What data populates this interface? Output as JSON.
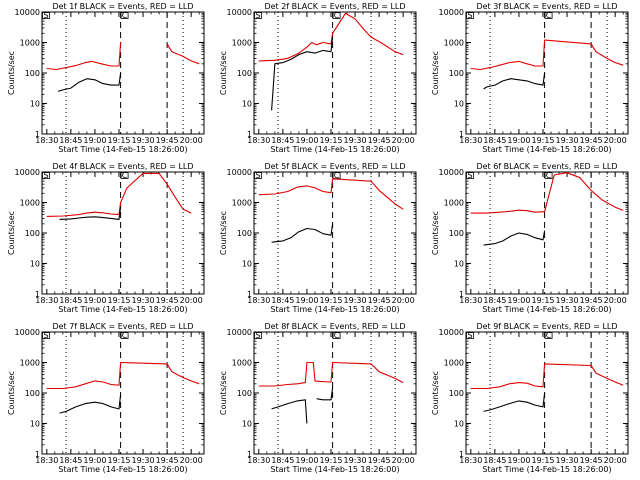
{
  "figure": {
    "colors": {
      "events": "#000000",
      "lld": "#e00000",
      "axes": "#000000",
      "background": "#ffffff"
    }
  },
  "chart_data": [
    {
      "type": "line",
      "title": "Det 1f BLACK = Events, RED = LLD",
      "xlabel": "Start Time (14-Feb-15 18:26:00)",
      "ylabel": "Counts/sec",
      "y_scale": "log",
      "ylim": [
        1,
        10000
      ],
      "x_tick_labels": [
        "18:30",
        "18:45",
        "19:00",
        "19:15",
        "19:30",
        "19:45",
        "20:00"
      ],
      "y_tick_labels": [
        "1",
        "10",
        "100",
        "1000",
        "10000"
      ],
      "grid": false,
      "dotted_lines": [
        "18:42",
        "19:55"
      ],
      "dashed_lines": [
        "19:16",
        "19:45"
      ],
      "flags": [
        "S",
        "C"
      ],
      "series": [
        {
          "name": "LLD",
          "color": "#e00000",
          "x": [
            "18:30",
            "18:36",
            "18:42",
            "18:48",
            "18:54",
            "18:58",
            "19:04",
            "19:10",
            "19:15",
            "19:16",
            "19:18",
            "19:30",
            "19:45",
            "19:48",
            "19:55",
            "20:00",
            "20:05"
          ],
          "y": [
            140,
            130,
            150,
            175,
            220,
            240,
            200,
            170,
            170,
            1000,
            null,
            null,
            900,
            500,
            350,
            250,
            200
          ]
        },
        {
          "name": "Events",
          "color": "#000000",
          "x": [
            "18:37",
            "18:40",
            "18:45",
            "18:50",
            "18:55",
            "19:00",
            "19:05",
            "19:10",
            "19:15",
            "19:16"
          ],
          "y": [
            25,
            28,
            32,
            50,
            65,
            60,
            45,
            40,
            40,
            100
          ]
        }
      ]
    },
    {
      "type": "line",
      "title": "Det 2f BLACK = Events, RED = LLD",
      "xlabel": "Start Time (14-Feb-15 18:26:00)",
      "ylabel": "Counts/sec",
      "y_scale": "log",
      "ylim": [
        1,
        10000
      ],
      "x_tick_labels": [
        "18:30",
        "18:45",
        "19:00",
        "19:15",
        "19:30",
        "19:45",
        "20:00"
      ],
      "y_tick_labels": [
        "1",
        "10",
        "100",
        "1000",
        "10000"
      ],
      "grid": false,
      "dotted_lines": [
        "18:42",
        "19:40",
        "19:55"
      ],
      "dashed_lines": [
        "19:16"
      ],
      "flags": [
        "S",
        "C"
      ],
      "series": [
        {
          "name": "LLD",
          "color": "#e00000",
          "x": [
            "18:30",
            "18:40",
            "18:48",
            "18:55",
            "19:00",
            "19:03",
            "19:06",
            "19:10",
            "19:15",
            "19:16",
            "19:24",
            "19:30",
            "19:36",
            "19:40",
            "19:46",
            "19:55",
            "20:00"
          ],
          "y": [
            250,
            260,
            300,
            450,
            700,
            1000,
            850,
            1000,
            900,
            2000,
            9000,
            6000,
            2500,
            1500,
            1000,
            500,
            400
          ]
        },
        {
          "name": "Events",
          "color": "#000000",
          "x": [
            "18:38",
            "18:40",
            "18:45",
            "18:50",
            "18:55",
            "19:00",
            "19:05",
            "19:10",
            "19:15",
            "19:16"
          ],
          "y": [
            6,
            200,
            220,
            280,
            400,
            500,
            450,
            550,
            500,
            1500
          ]
        }
      ]
    },
    {
      "type": "line",
      "title": "Det 3f BLACK = Events, RED = LLD",
      "xlabel": "Start Time (14-Feb-15 18:26:00)",
      "ylabel": "Counts/sec",
      "y_scale": "log",
      "ylim": [
        1,
        10000
      ],
      "x_tick_labels": [
        "18:30",
        "18:45",
        "19:00",
        "19:15",
        "19:30",
        "19:45",
        "20:00"
      ],
      "y_tick_labels": [
        "1",
        "10",
        "100",
        "1000",
        "10000"
      ],
      "grid": false,
      "dotted_lines": [
        "18:42",
        "19:55"
      ],
      "dashed_lines": [
        "19:16",
        "19:45"
      ],
      "flags": [
        "S",
        "C"
      ],
      "series": [
        {
          "name": "LLD",
          "color": "#e00000",
          "x": [
            "18:30",
            "18:36",
            "18:42",
            "18:48",
            "18:54",
            "19:00",
            "19:05",
            "19:10",
            "19:15",
            "19:16",
            "19:45",
            "19:48",
            "19:55",
            "20:00",
            "20:05"
          ],
          "y": [
            140,
            130,
            150,
            180,
            220,
            240,
            200,
            170,
            170,
            1200,
            900,
            500,
            300,
            220,
            180
          ]
        },
        {
          "name": "Events",
          "color": "#000000",
          "x": [
            "18:38",
            "18:40",
            "18:45",
            "18:50",
            "18:55",
            "19:00",
            "19:05",
            "19:10",
            "19:15",
            "19:16"
          ],
          "y": [
            30,
            35,
            40,
            55,
            65,
            60,
            55,
            45,
            40,
            100
          ]
        }
      ]
    },
    {
      "type": "line",
      "title": "Det 4f BLACK = Events, RED = LLD",
      "xlabel": "Start Time (14-Feb-15 18:26:00)",
      "ylabel": "Counts/sec",
      "y_scale": "log",
      "ylim": [
        1,
        10000
      ],
      "x_tick_labels": [
        "18:30",
        "18:45",
        "19:00",
        "19:15",
        "19:30",
        "19:45",
        "20:00"
      ],
      "y_tick_labels": [
        "1",
        "10",
        "100",
        "1000",
        "10000"
      ],
      "grid": false,
      "dotted_lines": [
        "18:42",
        "19:55"
      ],
      "dashed_lines": [
        "19:16",
        "19:45"
      ],
      "flags": [
        "S",
        "C"
      ],
      "series": [
        {
          "name": "LLD",
          "color": "#e00000",
          "x": [
            "18:30",
            "18:40",
            "18:50",
            "18:55",
            "19:00",
            "19:05",
            "19:10",
            "19:15",
            "19:16",
            "19:20",
            "19:30",
            "19:40",
            "19:45",
            "19:50",
            "19:55",
            "20:00"
          ],
          "y": [
            350,
            360,
            400,
            450,
            480,
            460,
            420,
            400,
            1000,
            3000,
            9000,
            9000,
            4000,
            1500,
            600,
            450
          ]
        },
        {
          "name": "Events",
          "color": "#000000",
          "x": [
            "18:38",
            "18:45",
            "18:50",
            "18:55",
            "19:00",
            "19:05",
            "19:10",
            "19:15",
            "19:16"
          ],
          "y": [
            280,
            290,
            310,
            330,
            340,
            320,
            300,
            280,
            700
          ]
        }
      ]
    },
    {
      "type": "line",
      "title": "Det 5f BLACK = Events, RED = LLD",
      "xlabel": "Start Time (14-Feb-15 18:26:00)",
      "ylabel": "Counts/sec",
      "y_scale": "log",
      "ylim": [
        1,
        10000
      ],
      "x_tick_labels": [
        "18:30",
        "18:45",
        "19:00",
        "19:15",
        "19:30",
        "19:45",
        "20:00"
      ],
      "y_tick_labels": [
        "1",
        "10",
        "100",
        "1000",
        "10000"
      ],
      "grid": false,
      "dotted_lines": [
        "18:42",
        "19:40",
        "19:55"
      ],
      "dashed_lines": [
        "19:16"
      ],
      "flags": [
        "S",
        "C"
      ],
      "series": [
        {
          "name": "LLD",
          "color": "#e00000",
          "x": [
            "18:30",
            "18:40",
            "18:48",
            "18:54",
            "19:00",
            "19:05",
            "19:10",
            "19:15",
            "19:16",
            "19:40",
            "19:45",
            "19:55",
            "20:00"
          ],
          "y": [
            1800,
            1900,
            2300,
            3200,
            3500,
            3000,
            2300,
            2100,
            6000,
            5000,
            2500,
            900,
            600
          ]
        },
        {
          "name": "Events",
          "color": "#000000",
          "x": [
            "18:38",
            "18:45",
            "18:50",
            "18:55",
            "19:00",
            "19:05",
            "19:10",
            "19:15",
            "19:16"
          ],
          "y": [
            50,
            55,
            70,
            110,
            140,
            130,
            95,
            85,
            200
          ]
        }
      ]
    },
    {
      "type": "line",
      "title": "Det 6f BLACK = Events, RED = LLD",
      "xlabel": "Start Time (14-Feb-15 18:26:00)",
      "ylabel": "Counts/sec",
      "y_scale": "log",
      "ylim": [
        1,
        10000
      ],
      "x_tick_labels": [
        "18:30",
        "18:45",
        "19:00",
        "19:15",
        "19:30",
        "19:45",
        "20:00"
      ],
      "y_tick_labels": [
        "1",
        "10",
        "100",
        "1000",
        "10000"
      ],
      "grid": false,
      "dotted_lines": [
        "18:42",
        "19:55"
      ],
      "dashed_lines": [
        "19:16",
        "19:45"
      ],
      "flags": [
        "S",
        "C"
      ],
      "series": [
        {
          "name": "LLD",
          "color": "#e00000",
          "x": [
            "18:30",
            "18:40",
            "18:48",
            "18:55",
            "19:00",
            "19:05",
            "19:10",
            "19:16",
            "19:22",
            "19:30",
            "19:38",
            "19:45",
            "19:52",
            "20:00",
            "20:05"
          ],
          "y": [
            450,
            450,
            480,
            520,
            560,
            540,
            480,
            500,
            8000,
            9500,
            6500,
            2500,
            1200,
            700,
            550
          ]
        },
        {
          "name": "Events",
          "color": "#000000",
          "x": [
            "18:38",
            "18:45",
            "18:50",
            "18:55",
            "19:00",
            "19:05",
            "19:10",
            "19:15",
            "19:16"
          ],
          "y": [
            40,
            45,
            55,
            80,
            100,
            90,
            70,
            60,
            120
          ]
        }
      ]
    },
    {
      "type": "line",
      "title": "Det 7f BLACK = Events, RED = LLD",
      "xlabel": "Start Time (14-Feb-15 18:26:00)",
      "ylabel": "Counts/sec",
      "y_scale": "log",
      "ylim": [
        1,
        10000
      ],
      "x_tick_labels": [
        "18:30",
        "18:45",
        "19:00",
        "19:15",
        "19:30",
        "19:45",
        "20:00"
      ],
      "y_tick_labels": [
        "1",
        "10",
        "100",
        "1000",
        "10000"
      ],
      "grid": false,
      "dotted_lines": [
        "18:42",
        "19:55"
      ],
      "dashed_lines": [
        "19:16",
        "19:45"
      ],
      "flags": [
        "S",
        "C"
      ],
      "series": [
        {
          "name": "LLD",
          "color": "#e00000",
          "x": [
            "18:30",
            "18:40",
            "18:48",
            "18:54",
            "19:00",
            "19:05",
            "19:10",
            "19:15",
            "19:16",
            "19:45",
            "19:48",
            "19:55",
            "20:00",
            "20:05"
          ],
          "y": [
            140,
            140,
            160,
            200,
            250,
            230,
            190,
            180,
            1000,
            900,
            500,
            320,
            250,
            200
          ]
        },
        {
          "name": "Events",
          "color": "#000000",
          "x": [
            "18:38",
            "18:42",
            "18:48",
            "18:54",
            "19:00",
            "19:05",
            "19:10",
            "19:15",
            "19:16"
          ],
          "y": [
            22,
            25,
            35,
            45,
            50,
            45,
            35,
            30,
            90
          ]
        }
      ]
    },
    {
      "type": "line",
      "title": "Det 8f BLACK = Events, RED = LLD",
      "xlabel": "Start Time (14-Feb-15 18:26:00)",
      "ylabel": "Counts/sec",
      "y_scale": "log",
      "ylim": [
        1,
        10000
      ],
      "x_tick_labels": [
        "18:30",
        "18:45",
        "19:00",
        "19:15",
        "19:30",
        "19:45",
        "20:00"
      ],
      "y_tick_labels": [
        "1",
        "10",
        "100",
        "1000",
        "10000"
      ],
      "grid": false,
      "dotted_lines": [
        "18:42",
        "19:40",
        "19:55"
      ],
      "dashed_lines": [
        "19:16"
      ],
      "flags": [
        "S",
        "C"
      ],
      "series": [
        {
          "name": "LLD",
          "color": "#e00000",
          "x": [
            "18:30",
            "18:40",
            "18:48",
            "18:54",
            "18:59",
            "19:00",
            "19:04",
            "19:05",
            "19:08",
            "19:15",
            "19:16",
            "19:40",
            "19:45",
            "19:55",
            "20:00"
          ],
          "y": [
            170,
            170,
            190,
            200,
            220,
            1000,
            1000,
            250,
            240,
            230,
            1000,
            900,
            500,
            300,
            220
          ]
        },
        {
          "name": "Events",
          "color": "#000000",
          "x": [
            "18:38",
            "18:42",
            "18:48",
            "18:54",
            "18:59",
            "19:00",
            "19:05",
            "19:06",
            "19:10",
            "19:15",
            "19:16"
          ],
          "y": [
            30,
            35,
            45,
            55,
            60,
            10,
            null,
            65,
            60,
            60,
            150
          ]
        }
      ]
    },
    {
      "type": "line",
      "title": "Det 9f BLACK = Events, RED = LLD",
      "xlabel": "Start Time (14-Feb-15 18:26:00)",
      "ylabel": "Counts/sec",
      "y_scale": "log",
      "ylim": [
        1,
        10000
      ],
      "x_tick_labels": [
        "18:30",
        "18:45",
        "19:00",
        "19:15",
        "19:30",
        "19:45",
        "20:00"
      ],
      "y_tick_labels": [
        "1",
        "10",
        "100",
        "1000",
        "10000"
      ],
      "grid": false,
      "dotted_lines": [
        "18:42",
        "19:55"
      ],
      "dashed_lines": [
        "19:16",
        "19:45"
      ],
      "flags": [
        "S",
        "C"
      ],
      "series": [
        {
          "name": "LLD",
          "color": "#e00000",
          "x": [
            "18:30",
            "18:40",
            "18:48",
            "18:54",
            "19:00",
            "19:05",
            "19:10",
            "19:15",
            "19:16",
            "19:45",
            "19:48",
            "19:55",
            "20:00",
            "20:05"
          ],
          "y": [
            140,
            140,
            160,
            200,
            220,
            210,
            170,
            160,
            900,
            800,
            450,
            300,
            230,
            180
          ]
        },
        {
          "name": "Events",
          "color": "#000000",
          "x": [
            "18:38",
            "18:42",
            "18:48",
            "18:54",
            "19:00",
            "19:05",
            "19:10",
            "19:15",
            "19:16"
          ],
          "y": [
            25,
            28,
            35,
            45,
            55,
            50,
            40,
            35,
            100
          ]
        }
      ]
    }
  ]
}
